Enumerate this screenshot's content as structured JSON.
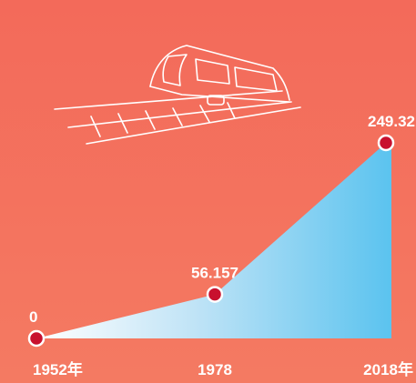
{
  "chart_data": {
    "type": "area",
    "categories": [
      "1952年",
      "1978",
      "2018年"
    ],
    "values": [
      0,
      56.157,
      249.32
    ]
  }
}
